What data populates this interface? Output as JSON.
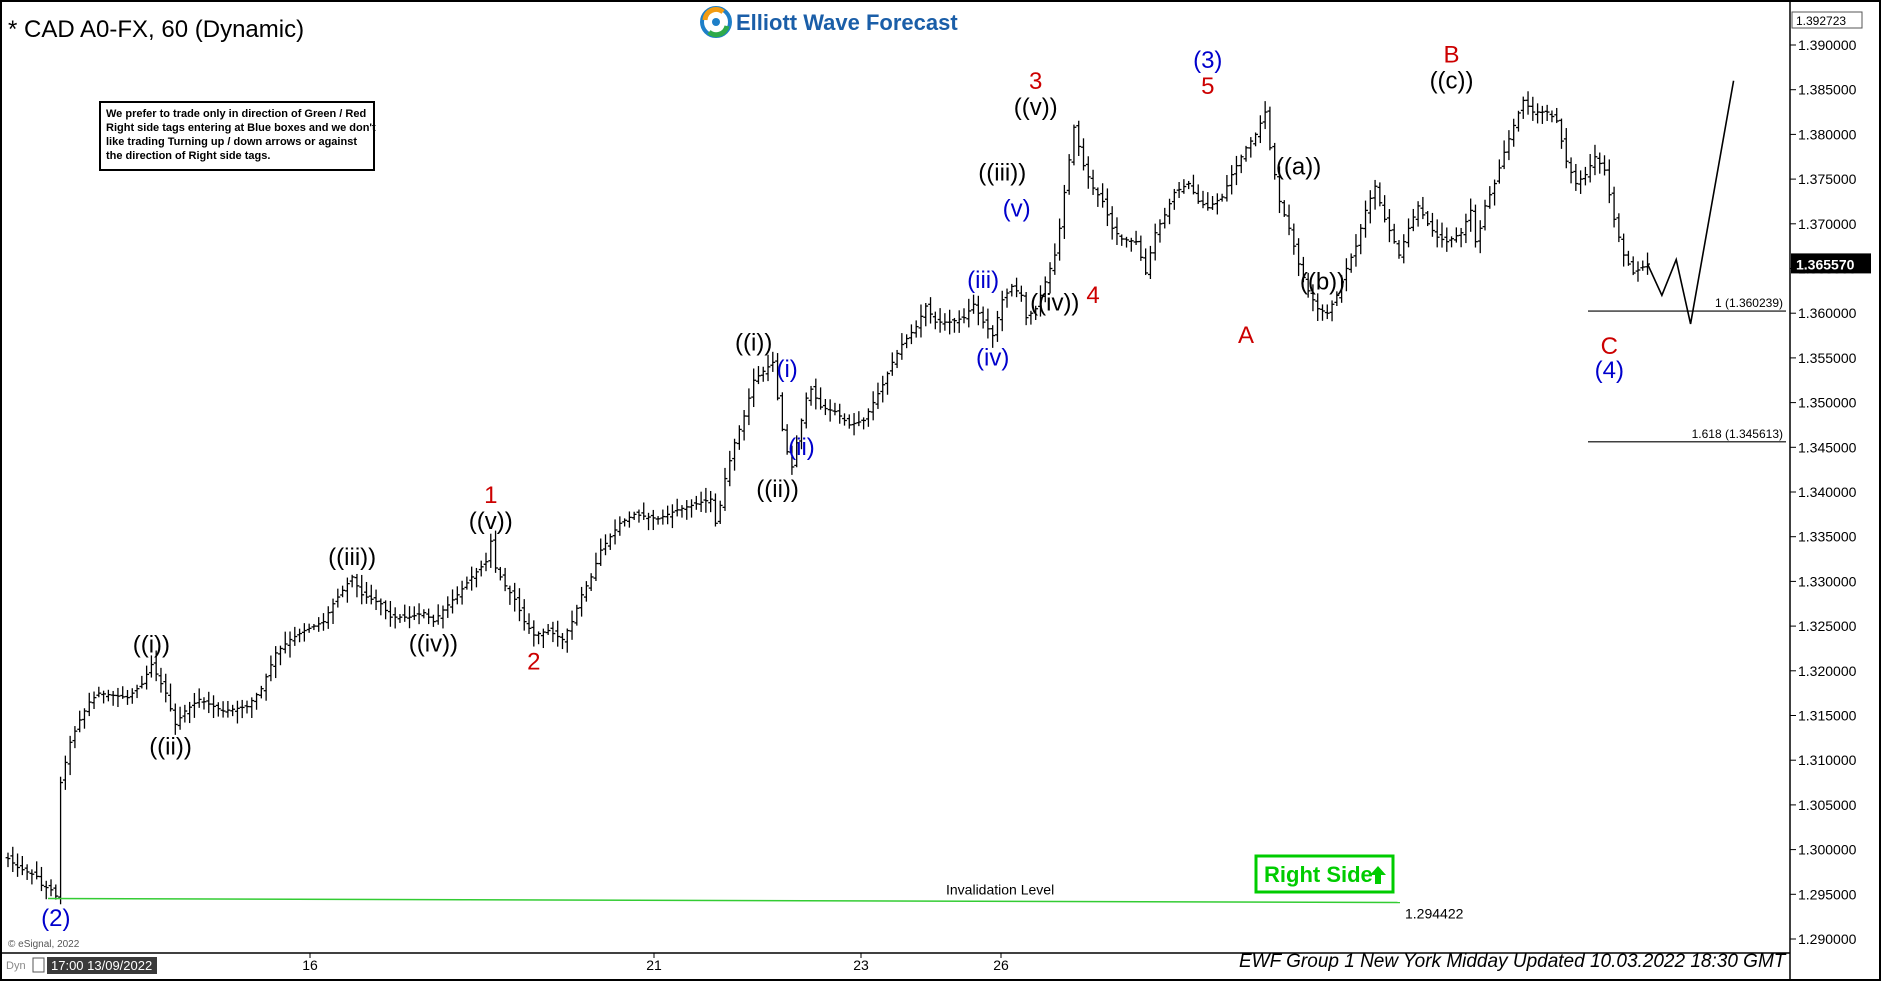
{
  "header": {
    "instrument_title": "* CAD A0-FX, 60 (Dynamic)",
    "brand": "Elliott Wave Forecast",
    "footer": "EWF Group 1 New York Midday Updated 10.03.2022 18:30 GMT",
    "copyright": "© eSignal, 2022",
    "cursor_time": "17:00 13/09/2022",
    "dyn_tag": "Dyn"
  },
  "note_box": {
    "lines": [
      "We prefer to trade only in direction of Green / Red",
      "Right side tags entering at Blue boxes and we don't",
      "like trading Turning up / down arrows or against",
      "the direction of Right side tags."
    ]
  },
  "right_side_tag": {
    "label": "Right Side",
    "color": "#00cc00",
    "arrow_icon": "up-arrow-icon"
  },
  "colors": {
    "red": "#cc0000",
    "blue": "#0000cc",
    "black": "#000000",
    "green": "#33cc33",
    "bars": "#000000"
  },
  "chart_data": {
    "type": "ohlc",
    "y_axis": {
      "range": [
        1.2875,
        1.3935
      ],
      "ticks": [
        "1.390000",
        "1.385000",
        "1.380000",
        "1.375000",
        "1.370000",
        "1.365000",
        "1.360000",
        "1.355000",
        "1.350000",
        "1.345000",
        "1.340000",
        "1.335000",
        "1.330000",
        "1.325000",
        "1.320000",
        "1.315000",
        "1.310000",
        "1.305000",
        "1.300000",
        "1.295000",
        "1.290000"
      ],
      "top_value_label": "1.392723",
      "current_price": "1.365570"
    },
    "x_axis": {
      "tick_labels": [
        "16",
        "21",
        "23",
        "26"
      ]
    },
    "price_path": [
      [
        0,
        1.299
      ],
      [
        2,
        1.298
      ],
      [
        4,
        1.2975
      ],
      [
        6,
        1.297
      ],
      [
        7,
        1.296
      ],
      [
        9,
        1.2955
      ],
      [
        10,
        1.2948
      ],
      [
        11,
        1.3075
      ],
      [
        13,
        1.312
      ],
      [
        15,
        1.3145
      ],
      [
        17,
        1.3165
      ],
      [
        19,
        1.3175
      ],
      [
        25,
        1.317
      ],
      [
        28,
        1.3185
      ],
      [
        30,
        1.3207
      ],
      [
        33,
        1.3175
      ],
      [
        35,
        1.314
      ],
      [
        37,
        1.3155
      ],
      [
        40,
        1.3168
      ],
      [
        45,
        1.3155
      ],
      [
        50,
        1.316
      ],
      [
        53,
        1.318
      ],
      [
        56,
        1.322
      ],
      [
        59,
        1.3235
      ],
      [
        62,
        1.3245
      ],
      [
        66,
        1.3255
      ],
      [
        68,
        1.3275
      ],
      [
        70,
        1.329
      ],
      [
        72,
        1.3305
      ],
      [
        74,
        1.3285
      ],
      [
        78,
        1.3275
      ],
      [
        80,
        1.326
      ],
      [
        84,
        1.326
      ],
      [
        87,
        1.3265
      ],
      [
        89,
        1.3255
      ],
      [
        91,
        1.3268
      ],
      [
        94,
        1.3285
      ],
      [
        97,
        1.3305
      ],
      [
        100,
        1.3322
      ],
      [
        101,
        1.3345
      ],
      [
        102,
        1.3315
      ],
      [
        104,
        1.3295
      ],
      [
        106,
        1.328
      ],
      [
        108,
        1.3255
      ],
      [
        110,
        1.324
      ],
      [
        113,
        1.3245
      ],
      [
        116,
        1.3235
      ],
      [
        118,
        1.3255
      ],
      [
        120,
        1.3285
      ],
      [
        122,
        1.3305
      ],
      [
        124,
        1.3335
      ],
      [
        126,
        1.335
      ],
      [
        128,
        1.3365
      ],
      [
        131,
        1.3375
      ],
      [
        136,
        1.337
      ],
      [
        140,
        1.338
      ],
      [
        143,
        1.3385
      ],
      [
        147,
        1.3392
      ],
      [
        148,
        1.3365
      ],
      [
        149,
        1.3385
      ],
      [
        150,
        1.3415
      ],
      [
        152,
        1.3455
      ],
      [
        154,
        1.3485
      ],
      [
        156,
        1.3525
      ],
      [
        158,
        1.3535
      ],
      [
        160,
        1.3545
      ],
      [
        161,
        1.3505
      ],
      [
        162,
        1.347
      ],
      [
        163,
        1.3445
      ],
      [
        164,
        1.3428
      ],
      [
        165,
        1.3455
      ],
      [
        166,
        1.348
      ],
      [
        167,
        1.3505
      ],
      [
        168,
        1.3515
      ],
      [
        170,
        1.3495
      ],
      [
        173,
        1.349
      ],
      [
        176,
        1.3475
      ],
      [
        179,
        1.348
      ],
      [
        181,
        1.35
      ],
      [
        183,
        1.352
      ],
      [
        185,
        1.3545
      ],
      [
        187,
        1.3565
      ],
      [
        190,
        1.3585
      ],
      [
        192,
        1.3608
      ],
      [
        194,
        1.359
      ],
      [
        197,
        1.359
      ],
      [
        200,
        1.3595
      ],
      [
        202,
        1.361
      ],
      [
        204,
        1.359
      ],
      [
        206,
        1.3575
      ],
      [
        208,
        1.3615
      ],
      [
        210,
        1.363
      ],
      [
        212,
        1.362
      ],
      [
        213,
        1.3595
      ],
      [
        215,
        1.3605
      ],
      [
        217,
        1.3635
      ],
      [
        219,
        1.3665
      ],
      [
        220,
        1.3695
      ],
      [
        221,
        1.3735
      ],
      [
        223,
        1.3808
      ],
      [
        225,
        1.3765
      ],
      [
        227,
        1.374
      ],
      [
        229,
        1.3725
      ],
      [
        231,
        1.3695
      ],
      [
        233,
        1.3683
      ],
      [
        236,
        1.368
      ],
      [
        238,
        1.3645
      ],
      [
        240,
        1.369
      ],
      [
        242,
        1.371
      ],
      [
        244,
        1.3735
      ],
      [
        247,
        1.3745
      ],
      [
        249,
        1.3725
      ],
      [
        251,
        1.3718
      ],
      [
        254,
        1.373
      ],
      [
        256,
        1.3755
      ],
      [
        259,
        1.3785
      ],
      [
        261,
        1.38
      ],
      [
        263,
        1.3825
      ],
      [
        264,
        1.3785
      ],
      [
        266,
        1.3725
      ],
      [
        268,
        1.3695
      ],
      [
        270,
        1.3655
      ],
      [
        272,
        1.3625
      ],
      [
        274,
        1.3605
      ],
      [
        276,
        1.36
      ],
      [
        278,
        1.362
      ],
      [
        280,
        1.365
      ],
      [
        282,
        1.3675
      ],
      [
        284,
        1.3715
      ],
      [
        286,
        1.3742
      ],
      [
        288,
        1.3705
      ],
      [
        290,
        1.368
      ],
      [
        291,
        1.3665
      ],
      [
        293,
        1.3695
      ],
      [
        295,
        1.372
      ],
      [
        297,
        1.37
      ],
      [
        299,
        1.3685
      ],
      [
        301,
        1.368
      ],
      [
        304,
        1.369
      ],
      [
        306,
        1.3715
      ],
      [
        307,
        1.368
      ],
      [
        308,
        1.3695
      ],
      [
        309,
        1.372
      ],
      [
        311,
        1.3745
      ],
      [
        313,
        1.378
      ],
      [
        315,
        1.381
      ],
      [
        317,
        1.3838
      ],
      [
        319,
        1.3825
      ],
      [
        322,
        1.3825
      ],
      [
        324,
        1.3815
      ],
      [
        326,
        1.377
      ],
      [
        328,
        1.3745
      ],
      [
        330,
        1.3755
      ],
      [
        332,
        1.3775
      ],
      [
        334,
        1.376
      ],
      [
        336,
        1.3705
      ],
      [
        338,
        1.3665
      ],
      [
        340,
        1.3645
      ],
      [
        343,
        1.3655
      ]
    ],
    "waves": [
      {
        "label": "(2)",
        "x": 10,
        "y": 1.2948,
        "place": "below",
        "color": "blue"
      },
      {
        "label": "((i))",
        "x": 30,
        "y": 1.3207,
        "place": "above",
        "color": "black"
      },
      {
        "label": "((ii))",
        "x": 34,
        "y": 1.314,
        "place": "below",
        "color": "black"
      },
      {
        "label": "((iii))",
        "x": 72,
        "y": 1.3305,
        "place": "above",
        "color": "black"
      },
      {
        "label": "((iv))",
        "x": 89,
        "y": 1.3255,
        "place": "below",
        "color": "black"
      },
      {
        "label": "((v))",
        "x": 101,
        "y": 1.3345,
        "place": "above",
        "color": "black"
      },
      {
        "label": "1",
        "x": 101,
        "y": 1.3345,
        "place": "above2",
        "color": "red"
      },
      {
        "label": "2",
        "x": 110,
        "y": 1.3235,
        "place": "below",
        "color": "red"
      },
      {
        "label": "((i))",
        "x": 156,
        "y": 1.3545,
        "place": "above",
        "color": "black"
      },
      {
        "label": "((ii))",
        "x": 161,
        "y": 1.3428,
        "place": "below",
        "color": "black"
      },
      {
        "label": "(i)",
        "x": 163,
        "y": 1.3515,
        "place": "above",
        "color": "blue"
      },
      {
        "label": "(ii)",
        "x": 166,
        "y": 1.3475,
        "place": "below",
        "color": "blue"
      },
      {
        "label": "(iii)",
        "x": 204,
        "y": 1.3615,
        "place": "above",
        "color": "blue"
      },
      {
        "label": "(iv)",
        "x": 206,
        "y": 1.3575,
        "place": "below",
        "color": "blue"
      },
      {
        "label": "((iii))",
        "x": 208,
        "y": 1.3735,
        "place": "above",
        "color": "black"
      },
      {
        "label": "(v)",
        "x": 211,
        "y": 1.3695,
        "place": "above",
        "color": "blue"
      },
      {
        "label": "((iv))",
        "x": 213,
        "y": 1.3612,
        "place": "right",
        "color": "black"
      },
      {
        "label": "((v))",
        "x": 215,
        "y": 1.3808,
        "place": "above",
        "color": "black"
      },
      {
        "label": "3",
        "x": 215,
        "y": 1.3808,
        "place": "above2",
        "color": "red"
      },
      {
        "label": "4",
        "x": 227,
        "y": 1.3645,
        "place": "below",
        "color": "red"
      },
      {
        "label": "5",
        "x": 251,
        "y": 1.3832,
        "place": "above",
        "color": "red"
      },
      {
        "label": "(3)",
        "x": 251,
        "y": 1.3832,
        "place": "above2",
        "color": "blue"
      },
      {
        "label": "A",
        "x": 259,
        "y": 1.36,
        "place": "below",
        "color": "red"
      },
      {
        "label": "((a))",
        "x": 270,
        "y": 1.3742,
        "place": "above",
        "color": "black"
      },
      {
        "label": "((b))",
        "x": 275,
        "y": 1.366,
        "place": "below",
        "color": "black"
      },
      {
        "label": "((c))",
        "x": 302,
        "y": 1.3838,
        "place": "above",
        "color": "black"
      },
      {
        "label": "B",
        "x": 302,
        "y": 1.3838,
        "place": "above2",
        "color": "red"
      },
      {
        "label": "C",
        "x": 335,
        "y": 1.3588,
        "place": "below",
        "color": "red"
      },
      {
        "label": "(4)",
        "x": 335,
        "y": 1.3588,
        "place": "below2",
        "color": "blue"
      }
    ],
    "projection": [
      [
        343,
        1.3655
      ],
      [
        346,
        1.362
      ],
      [
        349,
        1.366
      ],
      [
        352,
        1.3588
      ],
      [
        361,
        1.386
      ]
    ],
    "fib_levels": [
      {
        "label": "1 (1.360239)",
        "value": 1.360239
      },
      {
        "label": "1.618 (1.345613)",
        "value": 1.345613
      }
    ],
    "invalidation": {
      "label": "Invalidation Level",
      "value_label": "1.294422",
      "value": 1.294422
    }
  }
}
